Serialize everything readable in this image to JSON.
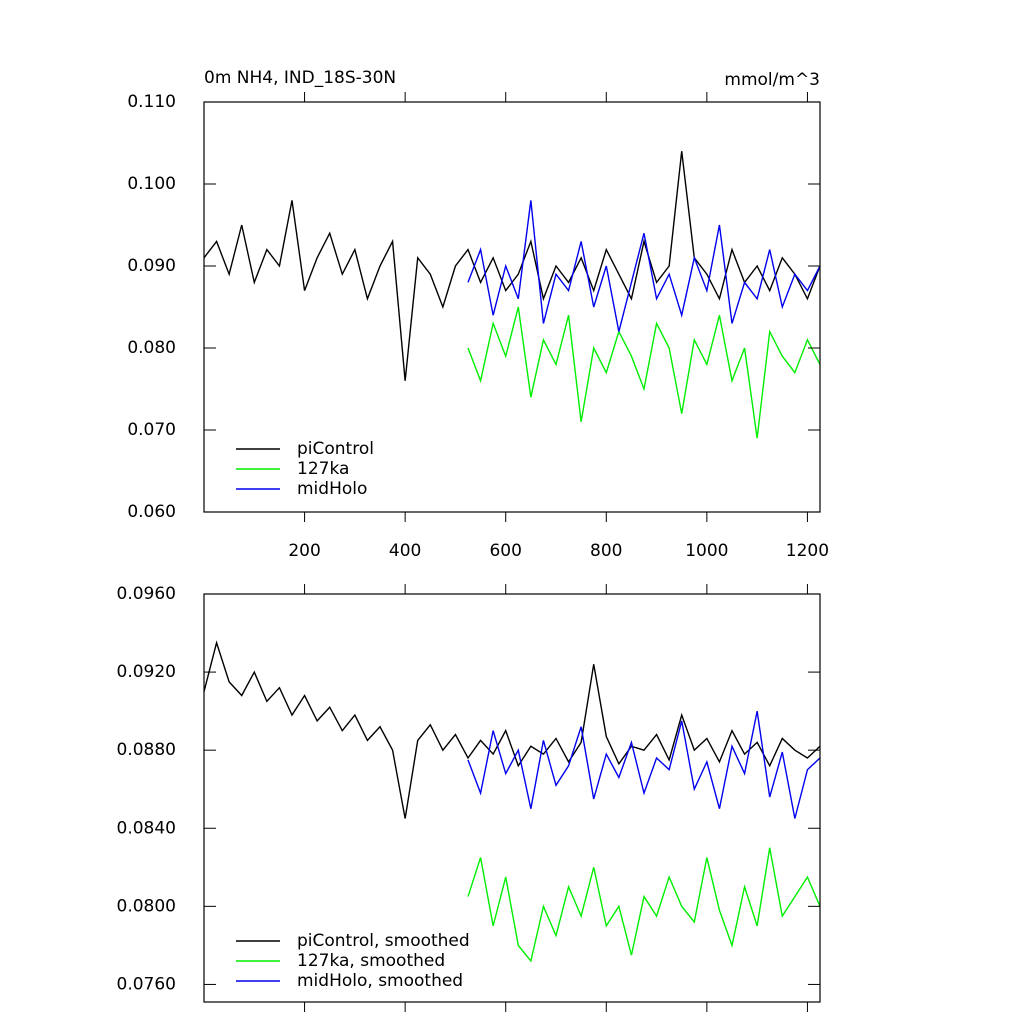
{
  "chart_data": [
    {
      "type": "line",
      "title": "0m NH4, IND_18S-30N",
      "units": "mmol/m^3",
      "xlim": [
        0,
        1225
      ],
      "xticks": [
        200,
        400,
        600,
        800,
        1000,
        1200
      ],
      "ylim": [
        0.06,
        0.11
      ],
      "yticks": [
        {
          "value": 0.06,
          "label": "0.060"
        },
        {
          "value": 0.07,
          "label": "0.070"
        },
        {
          "value": 0.08,
          "label": "0.080"
        },
        {
          "value": 0.09,
          "label": "0.090"
        },
        {
          "value": 0.1,
          "label": "0.100"
        },
        {
          "value": 0.11,
          "label": "0.110"
        }
      ],
      "legend": "lower left",
      "series": [
        {
          "name": "piControl",
          "color": "#000000",
          "x": [
            0,
            25,
            50,
            75,
            100,
            125,
            150,
            175,
            200,
            225,
            250,
            275,
            300,
            325,
            350,
            375,
            400,
            425,
            450,
            475,
            500,
            525,
            550,
            575,
            600,
            625,
            650,
            675,
            700,
            725,
            750,
            775,
            800,
            825,
            850,
            875,
            900,
            925,
            950,
            975,
            1000,
            1025,
            1050,
            1075,
            1100,
            1125,
            1150,
            1175,
            1200,
            1225
          ],
          "values": [
            0.091,
            0.093,
            0.089,
            0.095,
            0.088,
            0.092,
            0.09,
            0.098,
            0.087,
            0.091,
            0.094,
            0.089,
            0.092,
            0.086,
            0.09,
            0.093,
            0.076,
            0.091,
            0.089,
            0.085,
            0.09,
            0.092,
            0.088,
            0.091,
            0.087,
            0.089,
            0.093,
            0.086,
            0.09,
            0.088,
            0.091,
            0.087,
            0.092,
            0.089,
            0.086,
            0.093,
            0.088,
            0.09,
            0.104,
            0.091,
            0.089,
            0.086,
            0.092,
            0.088,
            0.09,
            0.087,
            0.091,
            0.089,
            0.086,
            0.09
          ]
        },
        {
          "name": "127ka",
          "color": "#00ee00",
          "x": [
            525,
            550,
            575,
            600,
            625,
            650,
            675,
            700,
            725,
            750,
            775,
            800,
            825,
            850,
            875,
            900,
            925,
            950,
            975,
            1000,
            1025,
            1050,
            1075,
            1100,
            1125,
            1150,
            1175,
            1200,
            1225
          ],
          "values": [
            0.08,
            0.076,
            0.083,
            0.079,
            0.085,
            0.074,
            0.081,
            0.078,
            0.084,
            0.071,
            0.08,
            0.077,
            0.082,
            0.079,
            0.075,
            0.083,
            0.08,
            0.072,
            0.081,
            0.078,
            0.084,
            0.076,
            0.08,
            0.069,
            0.082,
            0.079,
            0.077,
            0.081,
            0.078
          ]
        },
        {
          "name": "midHolo",
          "color": "#0000ee",
          "x": [
            525,
            550,
            575,
            600,
            625,
            650,
            675,
            700,
            725,
            750,
            775,
            800,
            825,
            850,
            875,
            900,
            925,
            950,
            975,
            1000,
            1025,
            1050,
            1075,
            1100,
            1125,
            1150,
            1175,
            1200,
            1225
          ],
          "values": [
            0.088,
            0.092,
            0.084,
            0.09,
            0.086,
            0.098,
            0.083,
            0.089,
            0.087,
            0.093,
            0.085,
            0.09,
            0.082,
            0.088,
            0.094,
            0.086,
            0.089,
            0.084,
            0.091,
            0.087,
            0.095,
            0.083,
            0.088,
            0.086,
            0.092,
            0.085,
            0.089,
            0.087,
            0.09
          ]
        }
      ]
    },
    {
      "type": "line",
      "xlim": [
        0,
        1225
      ],
      "xticks": [
        200,
        400,
        600,
        800,
        1000,
        1200
      ],
      "ylim": [
        0.0751,
        0.096
      ],
      "yticks": [
        {
          "value": 0.076,
          "label": "0.0760"
        },
        {
          "value": 0.08,
          "label": "0.0800"
        },
        {
          "value": 0.084,
          "label": "0.0840"
        },
        {
          "value": 0.088,
          "label": "0.0880"
        },
        {
          "value": 0.092,
          "label": "0.0920"
        },
        {
          "value": 0.096,
          "label": "0.0960"
        }
      ],
      "legend": "lower left",
      "series": [
        {
          "name": "piControl, smoothed",
          "color": "#000000",
          "x": [
            0,
            25,
            50,
            75,
            100,
            125,
            150,
            175,
            200,
            225,
            250,
            275,
            300,
            325,
            350,
            375,
            400,
            425,
            450,
            475,
            500,
            525,
            550,
            575,
            600,
            625,
            650,
            675,
            700,
            725,
            750,
            775,
            800,
            825,
            850,
            875,
            900,
            925,
            950,
            975,
            1000,
            1025,
            1050,
            1075,
            1100,
            1125,
            1150,
            1175,
            1200,
            1225
          ],
          "values": [
            0.091,
            0.0935,
            0.0915,
            0.0908,
            0.092,
            0.0905,
            0.0912,
            0.0898,
            0.0908,
            0.0895,
            0.0902,
            0.089,
            0.0898,
            0.0885,
            0.0892,
            0.088,
            0.0845,
            0.0885,
            0.0893,
            0.088,
            0.0888,
            0.0876,
            0.0885,
            0.0878,
            0.089,
            0.0872,
            0.0882,
            0.0878,
            0.0886,
            0.0874,
            0.0884,
            0.0924,
            0.0887,
            0.0873,
            0.0882,
            0.088,
            0.0888,
            0.0875,
            0.0898,
            0.088,
            0.0886,
            0.0874,
            0.089,
            0.0878,
            0.0884,
            0.0872,
            0.0886,
            0.088,
            0.0876,
            0.0882
          ]
        },
        {
          "name": "127ka, smoothed",
          "color": "#00ee00",
          "x": [
            525,
            550,
            575,
            600,
            625,
            650,
            675,
            700,
            725,
            750,
            775,
            800,
            825,
            850,
            875,
            900,
            925,
            950,
            975,
            1000,
            1025,
            1050,
            1075,
            1100,
            1125,
            1150,
            1175,
            1200,
            1225
          ],
          "values": [
            0.0805,
            0.0825,
            0.079,
            0.0815,
            0.078,
            0.0772,
            0.08,
            0.0785,
            0.081,
            0.0795,
            0.082,
            0.079,
            0.08,
            0.0775,
            0.0805,
            0.0795,
            0.0815,
            0.08,
            0.0792,
            0.0825,
            0.0798,
            0.078,
            0.081,
            0.079,
            0.083,
            0.0795,
            0.0805,
            0.0815,
            0.08
          ]
        },
        {
          "name": "midHolo, smoothed",
          "color": "#0000ee",
          "x": [
            525,
            550,
            575,
            600,
            625,
            650,
            675,
            700,
            725,
            750,
            775,
            800,
            825,
            850,
            875,
            900,
            925,
            950,
            975,
            1000,
            1025,
            1050,
            1075,
            1100,
            1125,
            1150,
            1175,
            1200,
            1225
          ],
          "values": [
            0.0875,
            0.0858,
            0.089,
            0.0868,
            0.088,
            0.085,
            0.0885,
            0.0862,
            0.0872,
            0.0892,
            0.0855,
            0.0878,
            0.0866,
            0.0884,
            0.0858,
            0.0876,
            0.087,
            0.0895,
            0.086,
            0.0874,
            0.085,
            0.0882,
            0.0868,
            0.09,
            0.0856,
            0.0879,
            0.0845,
            0.087,
            0.0876
          ]
        }
      ]
    }
  ]
}
